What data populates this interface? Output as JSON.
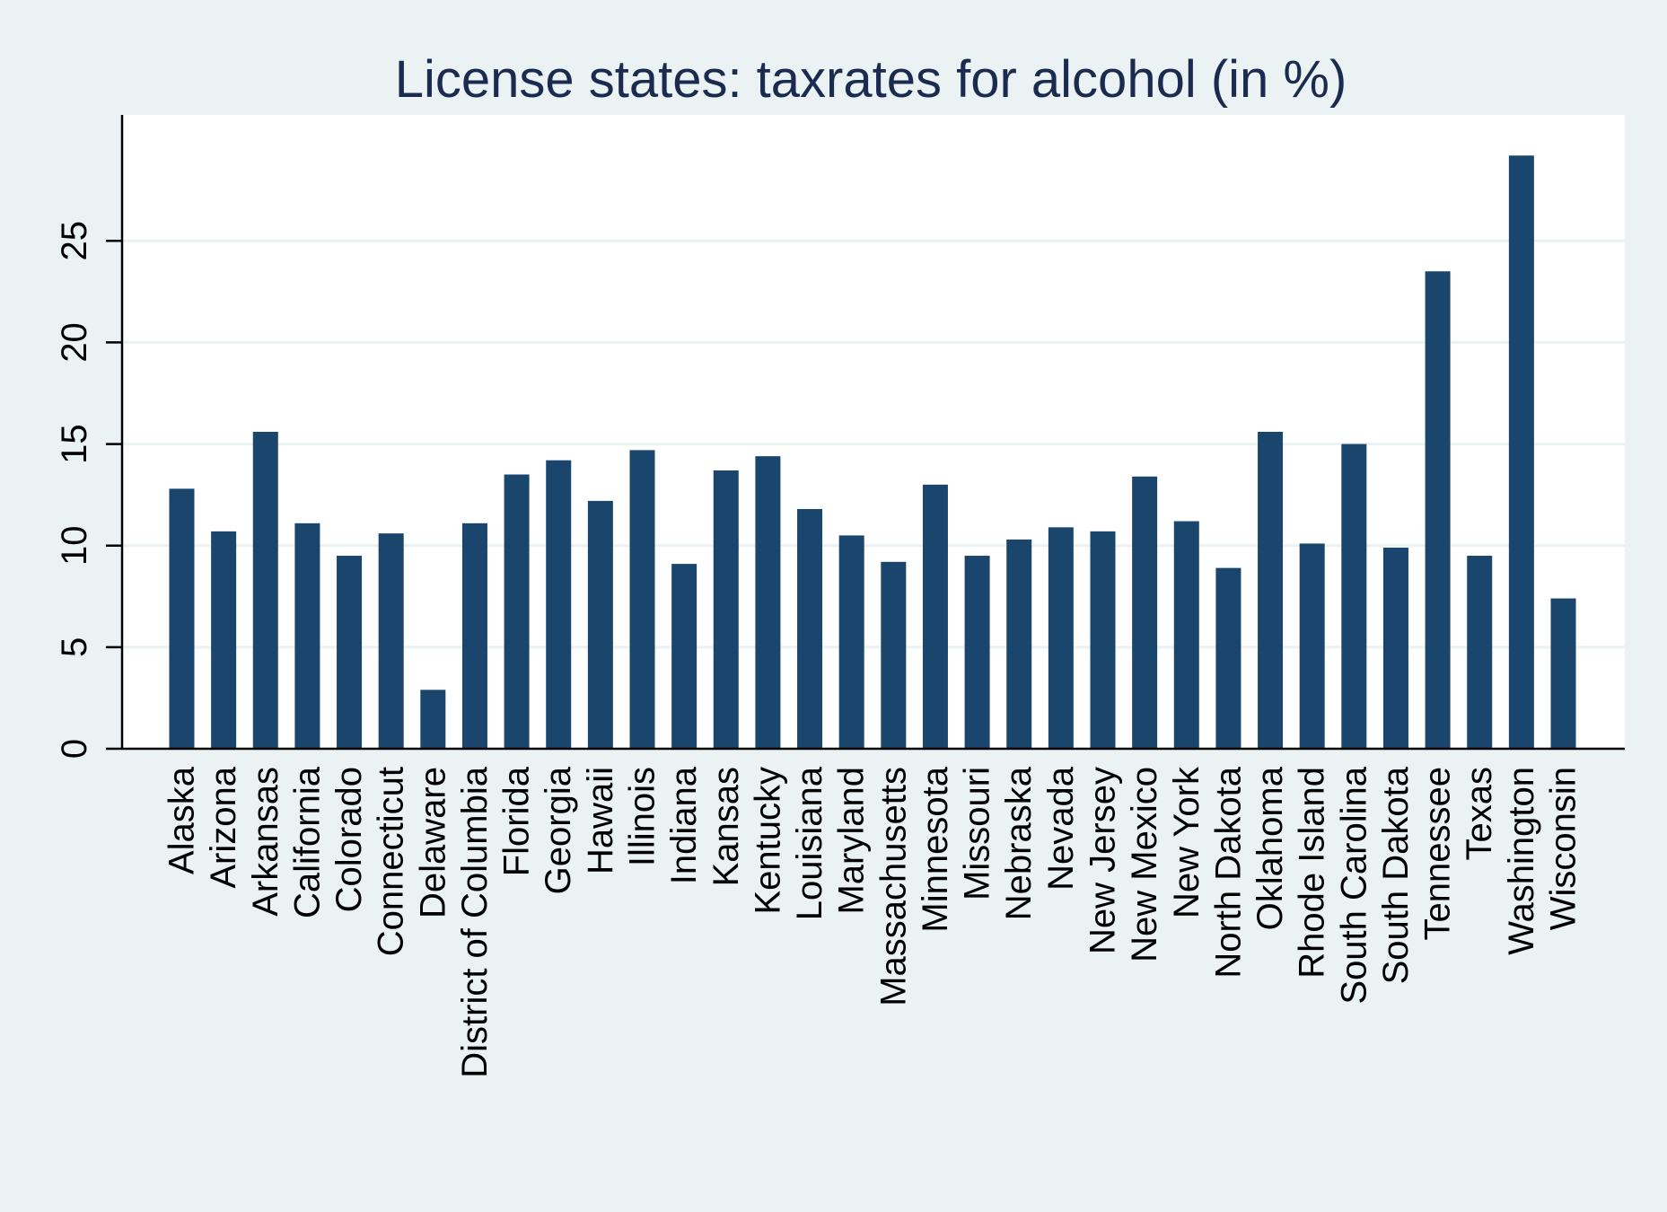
{
  "chart_data": {
    "type": "bar",
    "title": "License states: taxrates for alcohol (in %)",
    "xlabel": "",
    "ylabel": "",
    "categories": [
      "Alaska",
      "Arizona",
      "Arkansas",
      "California",
      "Colorado",
      "Connecticut",
      "Delaware",
      "District of Columbia",
      "Florida",
      "Georgia",
      "Hawaii",
      "Illinois",
      "Indiana",
      "Kansas",
      "Kentucky",
      "Louisiana",
      "Maryland",
      "Massachusetts",
      "Minnesota",
      "Missouri",
      "Nebraska",
      "Nevada",
      "New Jersey",
      "New Mexico",
      "New York",
      "North Dakota",
      "Oklahoma",
      "Rhode Island",
      "South Carolina",
      "South Dakota",
      "Tennessee",
      "Texas",
      "Washington",
      "Wisconsin"
    ],
    "values": [
      12.8,
      10.7,
      15.6,
      11.1,
      9.5,
      10.6,
      2.9,
      11.1,
      13.5,
      14.2,
      12.2,
      14.7,
      9.1,
      13.7,
      14.4,
      11.8,
      10.5,
      9.2,
      13.0,
      9.5,
      10.3,
      10.9,
      10.7,
      13.4,
      11.2,
      8.9,
      15.6,
      10.1,
      15.0,
      9.9,
      23.5,
      9.5,
      29.2,
      7.4
    ],
    "ylim": [
      0,
      31.2
    ],
    "yticks": [
      0,
      5,
      10,
      15,
      20,
      25
    ],
    "grid": true,
    "legend": "none",
    "colors": {
      "bar": "#1a466e",
      "plot_background": "#ffffff",
      "figure_background": "#eaf2f3",
      "grid": "#eaf2f3",
      "title": "#1a2b4f",
      "axis": "#000000"
    }
  }
}
